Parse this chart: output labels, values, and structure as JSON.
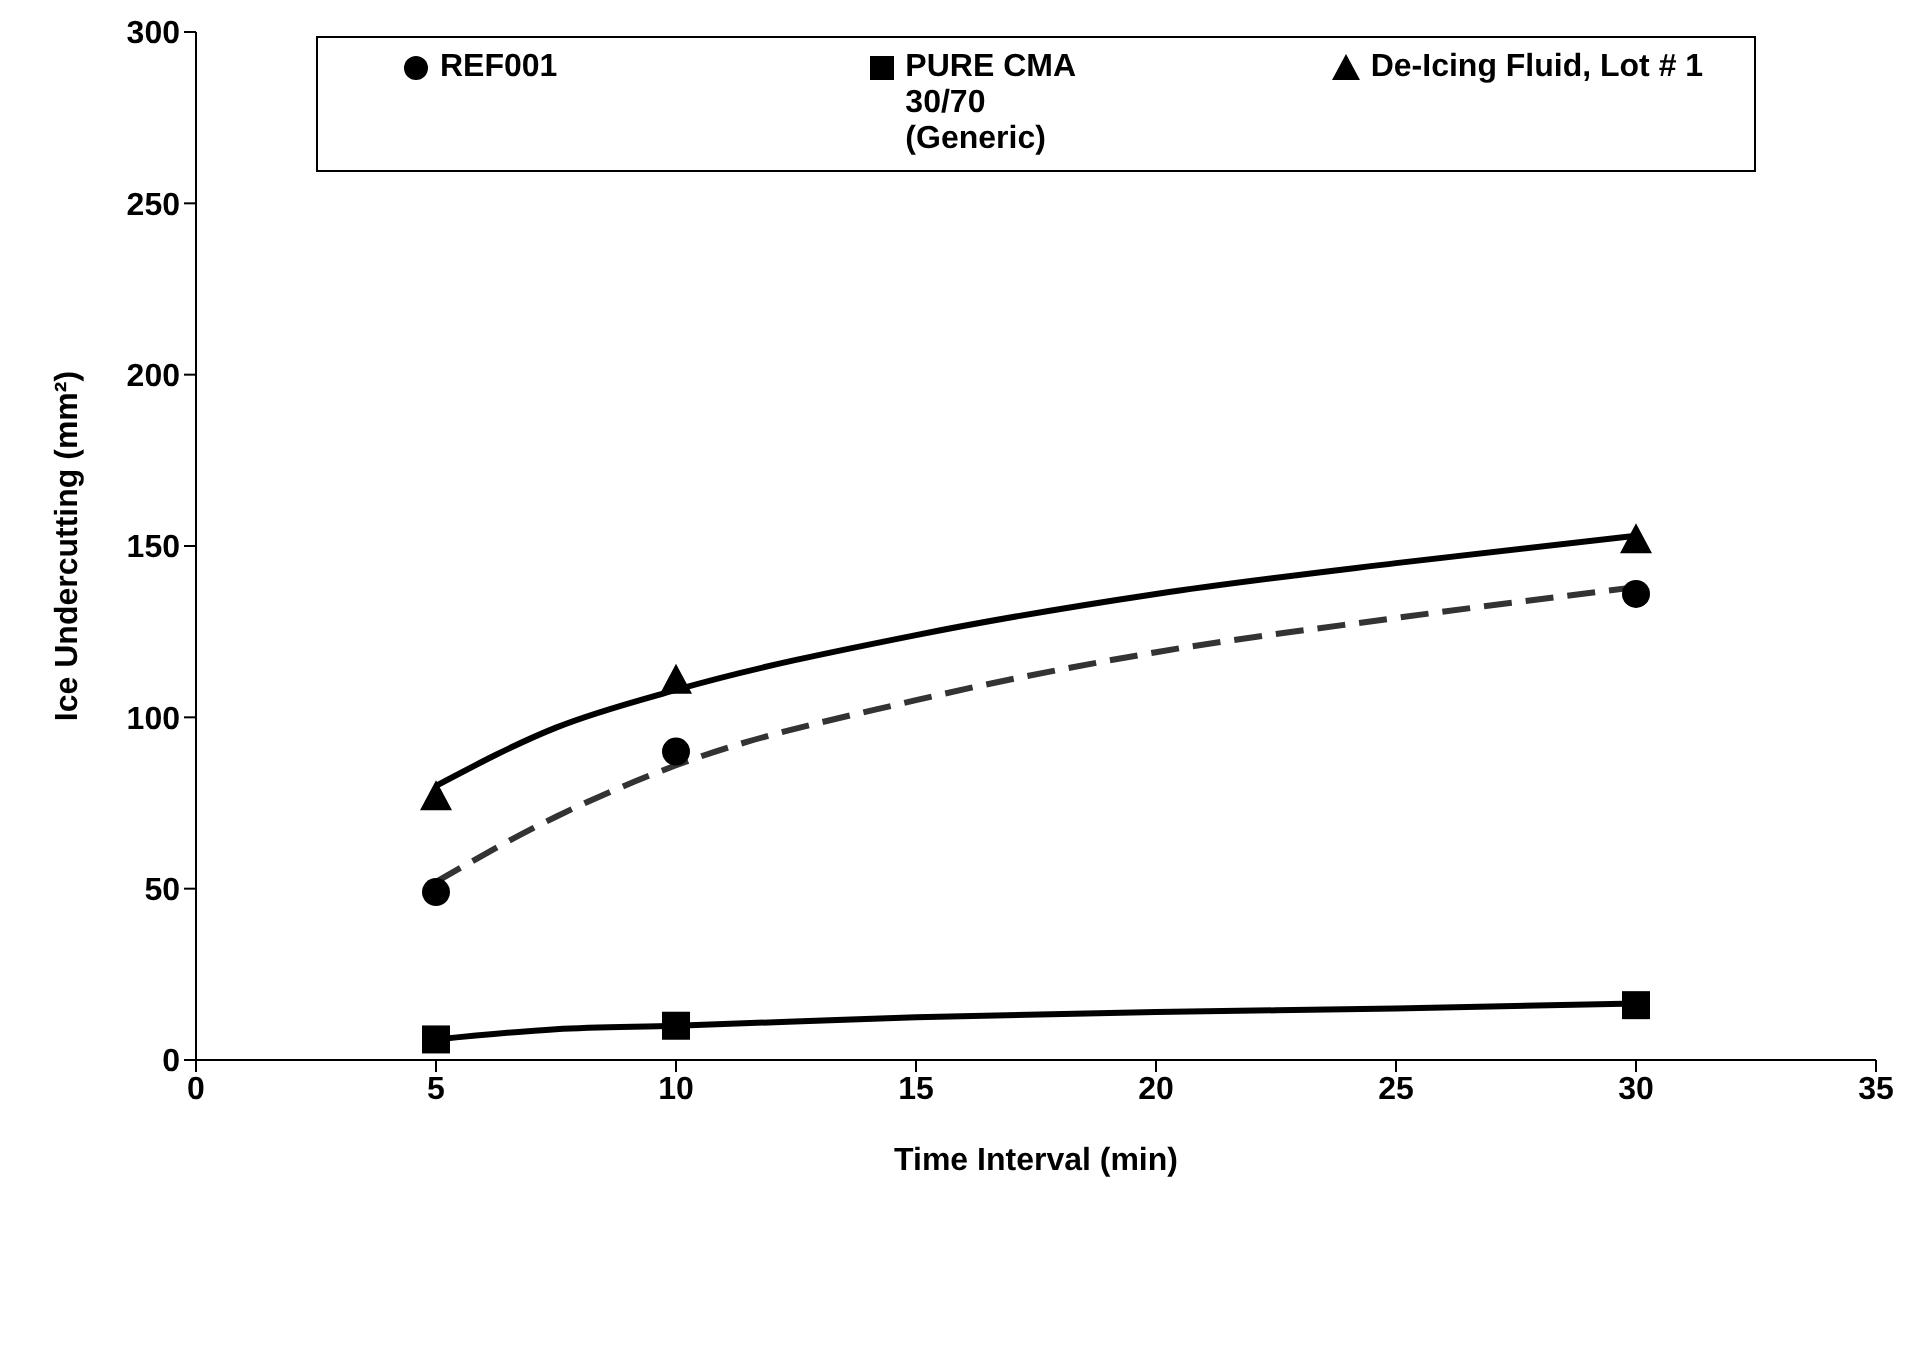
{
  "chart_data": {
    "type": "scatter",
    "xlabel": "Time Interval (min)",
    "ylabel": "Ice Undercutting (mm²)",
    "xlim": [
      0,
      35
    ],
    "xticks": [
      0,
      5,
      10,
      15,
      20,
      25,
      30,
      35
    ],
    "ylim": [
      0,
      300
    ],
    "yticks": [
      0,
      50,
      100,
      150,
      200,
      250,
      300
    ],
    "grid": false,
    "legend": "top",
    "series": [
      {
        "name": "REF001",
        "marker": "circle",
        "color": "#000000",
        "x": [
          5,
          10,
          30
        ],
        "values": [
          49,
          90,
          136
        ]
      },
      {
        "name": "PURE CMA 30/70 (Generic)",
        "marker": "square",
        "color": "#000000",
        "x": [
          5,
          10,
          30
        ],
        "values": [
          6,
          10,
          16
        ]
      },
      {
        "name": "De-Icing Fluid, Lot # 1",
        "marker": "triangle",
        "color": "#000000",
        "x": [
          5,
          10,
          30
        ],
        "values": [
          77,
          111,
          152
        ]
      },
      {
        "type": "line",
        "marker": "none",
        "line_style": "dashed",
        "color": "#333333",
        "x": [
          5,
          7.5,
          10,
          15,
          20,
          25,
          30
        ],
        "values": [
          52,
          71,
          86,
          105,
          119,
          129,
          138
        ]
      },
      {
        "type": "line",
        "marker": "none",
        "line_style": "solid",
        "color": "#000000",
        "x": [
          5,
          7.5,
          10,
          15,
          20,
          25,
          30
        ],
        "values": [
          6,
          9,
          10,
          12.5,
          14,
          15,
          16.5
        ]
      },
      {
        "type": "line",
        "marker": "none",
        "line_style": "solid",
        "color": "#000000",
        "x": [
          5,
          7.5,
          10,
          15,
          20,
          25,
          30
        ],
        "values": [
          80,
          97,
          108,
          124,
          136,
          145,
          153
        ]
      }
    ]
  }
}
